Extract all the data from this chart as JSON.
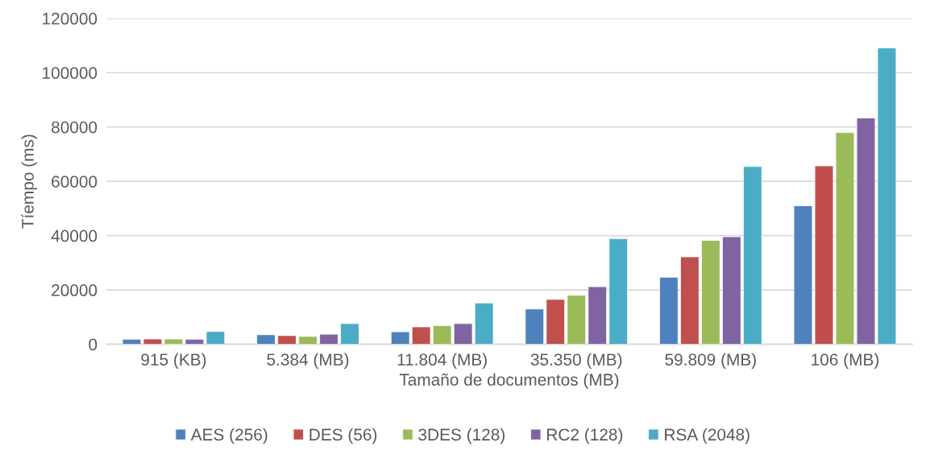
{
  "chart_data": {
    "type": "bar",
    "xlabel": "Tamaño de documentos (MB)",
    "ylabel": "Tíempo (ms)",
    "categories": [
      "915 (KB)",
      "5.384 (MB)",
      "11.804 (MB)",
      "35.350 (MB)",
      "59.809 (MB)",
      "106 (MB)"
    ],
    "series": [
      {
        "name": "AES (256)",
        "color": "#4f81bd",
        "values": [
          1850,
          3500,
          4600,
          13000,
          24700,
          51000
        ]
      },
      {
        "name": "DES (56)",
        "color": "#c0504d",
        "values": [
          1950,
          3200,
          6400,
          16500,
          32200,
          65700
        ]
      },
      {
        "name": "3DES (128)",
        "color": "#9bbb59",
        "values": [
          1950,
          2900,
          6900,
          18050,
          38250,
          77950
        ]
      },
      {
        "name": "RC2 (128)",
        "color": "#8064a2",
        "values": [
          1850,
          3700,
          7600,
          21200,
          39600,
          83300
        ]
      },
      {
        "name": "RSA (2048)",
        "color": "#4bacc6",
        "values": [
          4700,
          7600,
          15200,
          38900,
          65450,
          109100
        ]
      }
    ],
    "ylim": [
      0,
      120000
    ],
    "yticks": [
      0,
      20000,
      40000,
      60000,
      80000,
      100000,
      120000
    ],
    "grid": "y",
    "legend": "bottom"
  }
}
